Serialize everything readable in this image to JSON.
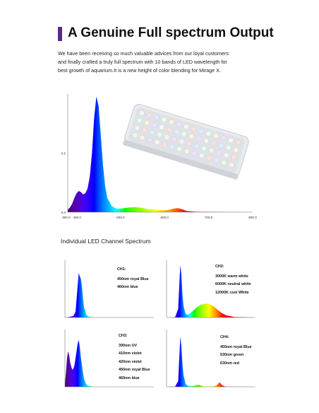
{
  "header": {
    "title": "A Genuine Full spectrum Output"
  },
  "intro": {
    "lines": [
      "We have been receiving so much valuable advices from our loyal customers",
      "and finally crafted a truly full spectrum with 10 bands of LED wavelength for",
      "best growth of aquarium.It is a new height of color blending for Mirage X."
    ]
  },
  "section_title": "Individual LED Channel Spectrum",
  "colors": {
    "accent": "#5b2a86",
    "axis": "#555555"
  },
  "chart_data": [
    {
      "type": "area",
      "xlim": [
        380,
        800
      ],
      "ylim": [
        0,
        1
      ],
      "xticks": [
        "380.0",
        "400.0",
        "500.0",
        "600.0",
        "700.0",
        "800.0"
      ],
      "yticks": [
        "0.0",
        "0.5"
      ],
      "x": [
        380,
        385,
        390,
        395,
        400,
        405,
        410,
        415,
        420,
        425,
        430,
        435,
        440,
        445,
        450,
        455,
        460,
        465,
        470,
        480,
        490,
        500,
        510,
        520,
        530,
        540,
        550,
        560,
        580,
        600,
        610,
        620,
        630,
        640,
        650,
        670,
        700,
        750,
        800
      ],
      "y": [
        0.02,
        0.04,
        0.07,
        0.12,
        0.16,
        0.18,
        0.17,
        0.15,
        0.16,
        0.2,
        0.3,
        0.5,
        0.8,
        0.98,
        0.9,
        0.65,
        0.4,
        0.22,
        0.12,
        0.05,
        0.03,
        0.03,
        0.035,
        0.04,
        0.042,
        0.04,
        0.035,
        0.028,
        0.02,
        0.016,
        0.02,
        0.03,
        0.034,
        0.025,
        0.01,
        0.004,
        0.002,
        0.001,
        0
      ]
    },
    {
      "type": "area",
      "xlim": [
        380,
        800
      ],
      "ylim": [
        0,
        1
      ],
      "x": [
        380,
        400,
        420,
        430,
        440,
        445,
        450,
        455,
        460,
        465,
        470,
        480,
        490,
        500,
        520,
        800
      ],
      "y": [
        0,
        0.01,
        0.03,
        0.1,
        0.55,
        0.78,
        0.72,
        0.68,
        0.55,
        0.35,
        0.18,
        0.06,
        0.02,
        0.01,
        0,
        0
      ],
      "labels": [
        "CH1:",
        "450nm royal Blue",
        "460nm blue"
      ]
    },
    {
      "type": "area",
      "xlim": [
        380,
        800
      ],
      "ylim": [
        0,
        1
      ],
      "x": [
        380,
        420,
        435,
        440,
        445,
        450,
        455,
        460,
        470,
        480,
        490,
        500,
        520,
        540,
        560,
        580,
        600,
        620,
        640,
        660,
        700,
        800
      ],
      "y": [
        0,
        0.005,
        0.15,
        0.55,
        0.92,
        0.75,
        0.4,
        0.2,
        0.06,
        0.05,
        0.07,
        0.1,
        0.17,
        0.22,
        0.24,
        0.24,
        0.2,
        0.14,
        0.08,
        0.04,
        0.01,
        0
      ],
      "labels": [
        "CH2:",
        "3000K warm white",
        "6000K neutral white",
        "12000K cool White"
      ]
    },
    {
      "type": "area",
      "xlim": [
        380,
        800
      ],
      "ylim": [
        0,
        1
      ],
      "x": [
        380,
        385,
        390,
        395,
        400,
        405,
        410,
        415,
        420,
        425,
        430,
        435,
        440,
        445,
        450,
        455,
        460,
        465,
        470,
        480,
        490,
        500,
        520,
        800
      ],
      "y": [
        0.05,
        0.25,
        0.5,
        0.62,
        0.55,
        0.42,
        0.35,
        0.3,
        0.32,
        0.38,
        0.5,
        0.62,
        0.75,
        0.82,
        0.7,
        0.52,
        0.38,
        0.25,
        0.14,
        0.05,
        0.02,
        0.01,
        0,
        0
      ],
      "labels": [
        "CH3:",
        "390nm UV",
        "410nm violet",
        "420nm violet",
        "450nm royal Blue",
        "460nm blue"
      ]
    },
    {
      "type": "area",
      "xlim": [
        380,
        800
      ],
      "ylim": [
        0,
        1
      ],
      "x": [
        380,
        420,
        435,
        440,
        445,
        450,
        455,
        460,
        470,
        480,
        500,
        515,
        530,
        545,
        560,
        600,
        615,
        625,
        630,
        635,
        645,
        660,
        800
      ],
      "y": [
        0,
        0.005,
        0.1,
        0.5,
        0.88,
        0.7,
        0.4,
        0.2,
        0.05,
        0.02,
        0.01,
        0.02,
        0.04,
        0.02,
        0.005,
        0.005,
        0.02,
        0.06,
        0.08,
        0.06,
        0.02,
        0.003,
        0
      ],
      "labels": [
        "CH4:",
        "450nm royal Blue",
        "530nm green",
        "630nm red"
      ]
    }
  ]
}
